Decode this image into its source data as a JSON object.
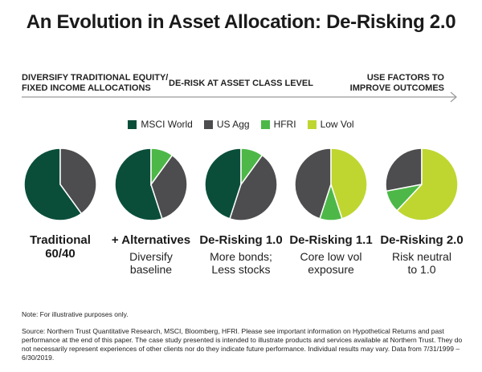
{
  "title": "An Evolution in Asset Allocation: De-Risking 2.0",
  "stages": {
    "left_line1": "DIVERSIFY TRADITIONAL EQUITY/",
    "left_line2": "FIXED INCOME ALLOCATIONS",
    "middle": "DE-RISK AT ASSET CLASS LEVEL",
    "right_line1": "USE FACTORS TO",
    "right_line2": "IMPROVE OUTCOMES"
  },
  "colors": {
    "msci_world": "#0a4e3a",
    "us_agg": "#4d4d4f",
    "hfri": "#4db848",
    "low_vol": "#bfd631",
    "arrow": "#9a9a9a"
  },
  "chart_data": {
    "type": "pie",
    "legend": [
      "MSCI World",
      "US Agg",
      "HFRI",
      "Low Vol"
    ],
    "legend_colors": [
      "#0a4e3a",
      "#4d4d4f",
      "#4db848",
      "#bfd631"
    ],
    "legend_placement": "top-center",
    "pies": [
      {
        "label": "Traditional",
        "label2": "60/40",
        "sub1": "",
        "sub2": "",
        "values": {
          "MSCI World": 60,
          "US Agg": 40,
          "HFRI": 0,
          "Low Vol": 0
        }
      },
      {
        "label": "+ Alternatives",
        "label2": "",
        "sub1": "Diversify",
        "sub2": "baseline",
        "values": {
          "MSCI World": 55,
          "US Agg": 35,
          "HFRI": 10,
          "Low Vol": 0
        }
      },
      {
        "label": "De-Risking 1.0",
        "label2": "",
        "sub1": "More bonds;",
        "sub2": "Less stocks",
        "values": {
          "MSCI World": 45,
          "US Agg": 45,
          "HFRI": 10,
          "Low Vol": 0
        }
      },
      {
        "label": "De-Risking 1.1",
        "label2": "",
        "sub1": "Core low vol",
        "sub2": "exposure",
        "values": {
          "MSCI World": 0,
          "US Agg": 45,
          "HFRI": 10,
          "Low Vol": 45
        }
      },
      {
        "label": "De-Risking 2.0",
        "label2": "",
        "sub1": "Risk neutral",
        "sub2": "to 1.0",
        "values": {
          "MSCI World": 0,
          "US Agg": 28,
          "HFRI": 10,
          "Low Vol": 62
        }
      }
    ]
  },
  "note": "Note: For illustrative purposes only.",
  "source": "Source: Northern Trust Quantitative Research, MSCI, Bloomberg, HFRI. Please see important information on Hypothetical Returns and past performance at the end of this paper. The case study presented is intended to illustrate products and services available at Northern Trust. They do not necessarily represent experiences of other clients nor do they indicate future performance. Individual results may vary. Data from 7/31/1999 – 6/30/2019."
}
